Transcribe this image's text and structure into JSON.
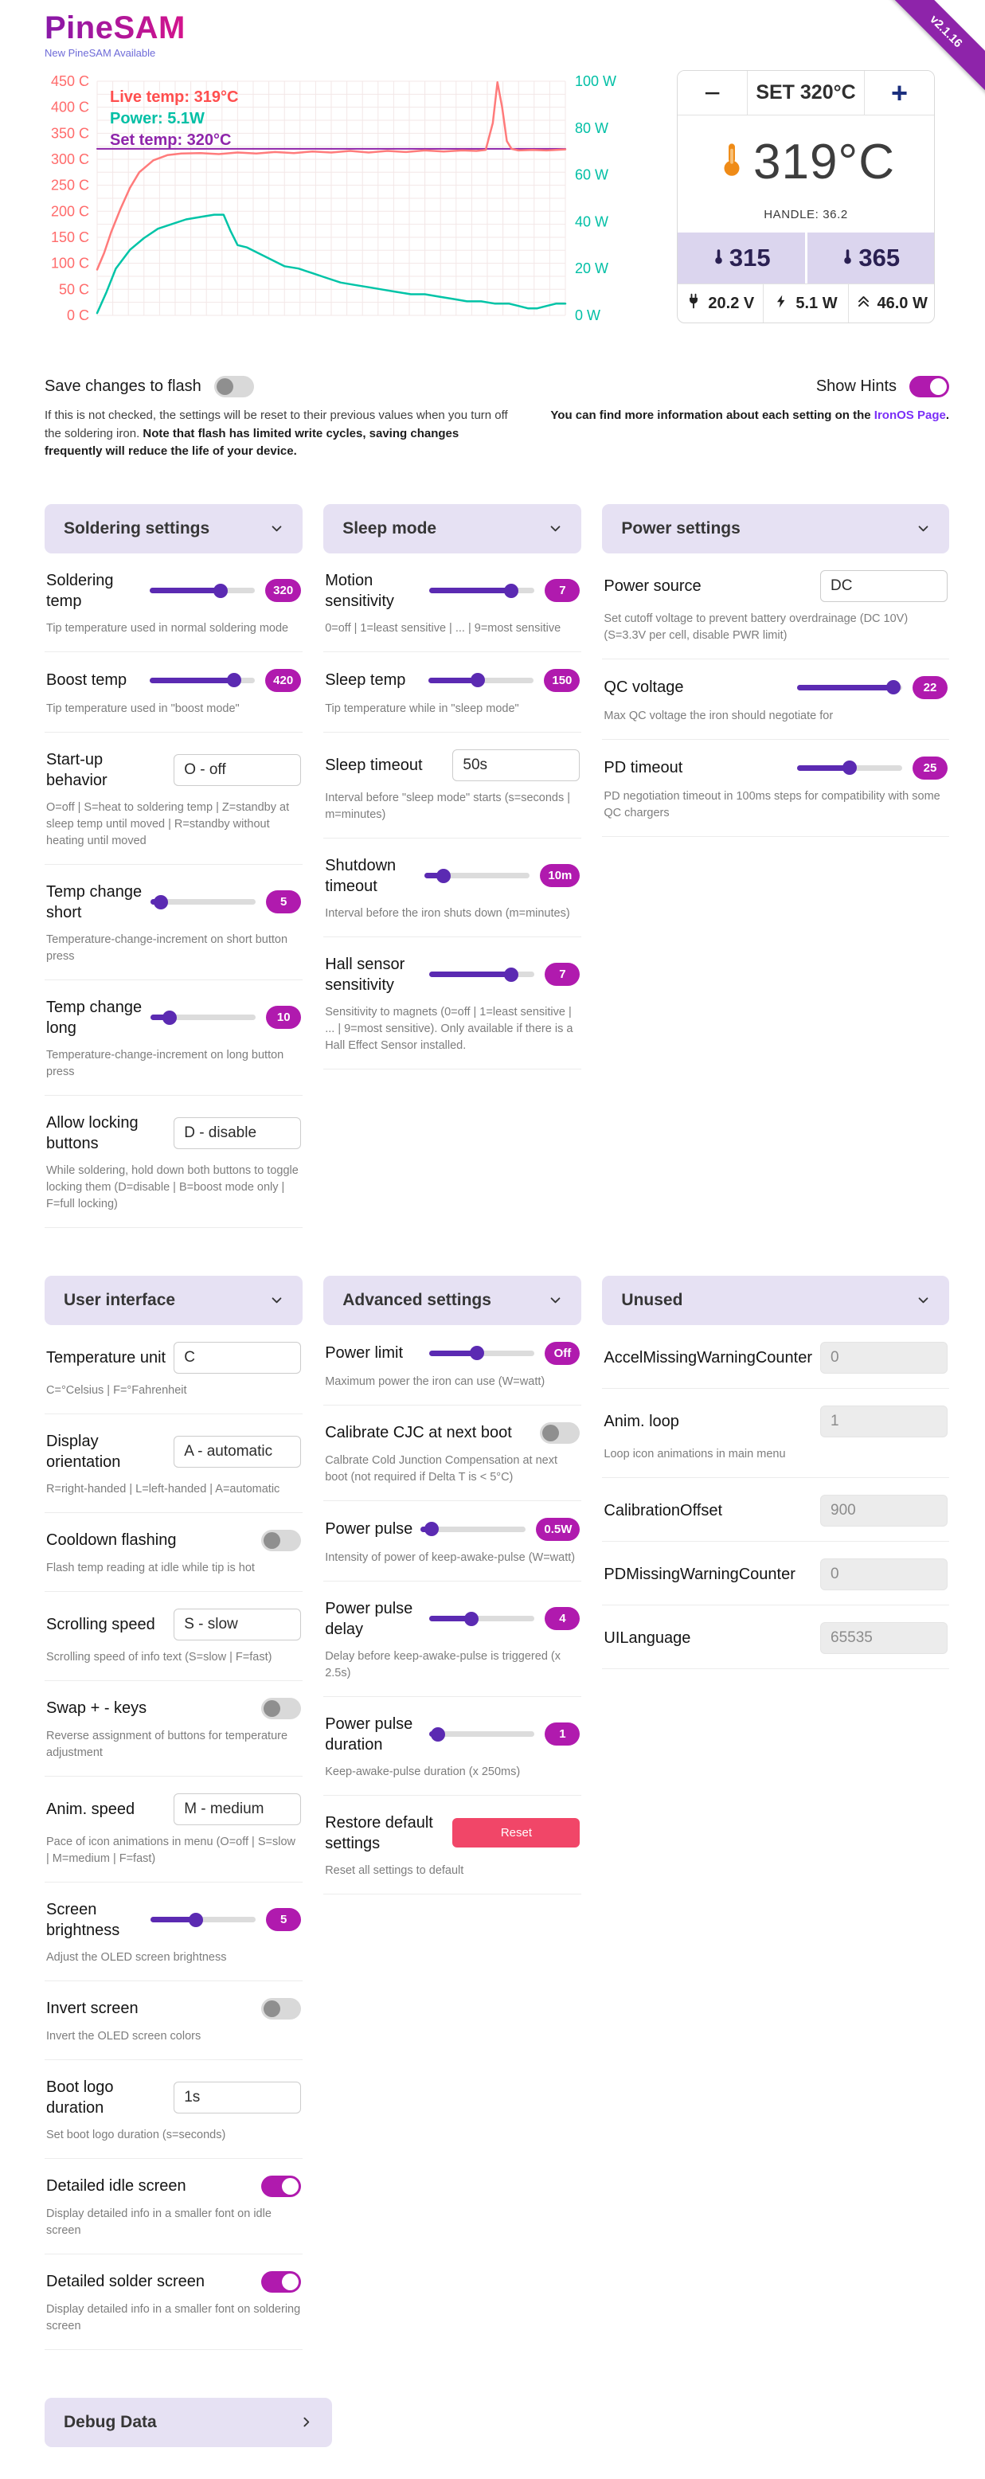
{
  "app": {
    "logo": "PineSAM",
    "update_link": "New PineSAM Available",
    "version": "v2.1.16"
  },
  "chart_data": {
    "type": "line",
    "title": "",
    "grid": true,
    "y_left": {
      "min": 0,
      "max": 450,
      "ticks": [
        0,
        50,
        100,
        150,
        200,
        250,
        300,
        350,
        400,
        450
      ],
      "suffix": " C",
      "color": "#ff6b6b"
    },
    "y_right": {
      "min": 0,
      "max": 100,
      "ticks": [
        0,
        20,
        40,
        60,
        80,
        100
      ],
      "suffix": " W",
      "color": "#00bfa5"
    },
    "legend": [
      {
        "label": "Live temp: 319°C",
        "color": "#ff4f4f"
      },
      {
        "label": "Power: 5.1W",
        "color": "#00bfa5"
      },
      {
        "label": "Set temp: 320°C",
        "color": "#8e24aa"
      }
    ],
    "series": [
      {
        "name": "Set temp",
        "axis": "left",
        "color": "#8e24aa",
        "width": 2,
        "points": [
          [
            0,
            320
          ],
          [
            1,
            320
          ]
        ]
      },
      {
        "name": "Live temp",
        "axis": "left",
        "color": "#ff7b7b",
        "width": 2.5,
        "points": [
          [
            0,
            88
          ],
          [
            0.015,
            120
          ],
          [
            0.03,
            160
          ],
          [
            0.05,
            205
          ],
          [
            0.07,
            245
          ],
          [
            0.09,
            275
          ],
          [
            0.12,
            298
          ],
          [
            0.15,
            308
          ],
          [
            0.18,
            311
          ],
          [
            0.22,
            312
          ],
          [
            0.26,
            310
          ],
          [
            0.3,
            313
          ],
          [
            0.34,
            311
          ],
          [
            0.38,
            314
          ],
          [
            0.42,
            312
          ],
          [
            0.46,
            315
          ],
          [
            0.5,
            313
          ],
          [
            0.54,
            316
          ],
          [
            0.58,
            313
          ],
          [
            0.62,
            316
          ],
          [
            0.66,
            314
          ],
          [
            0.7,
            317
          ],
          [
            0.74,
            315
          ],
          [
            0.78,
            317
          ],
          [
            0.81,
            316
          ],
          [
            0.83,
            318
          ],
          [
            0.845,
            370
          ],
          [
            0.855,
            448
          ],
          [
            0.865,
            400
          ],
          [
            0.875,
            335
          ],
          [
            0.885,
            320
          ],
          [
            0.9,
            317
          ],
          [
            0.93,
            318
          ],
          [
            0.96,
            317
          ],
          [
            1,
            319
          ]
        ]
      },
      {
        "name": "Power",
        "axis": "right",
        "color": "#00c4a7",
        "width": 2.5,
        "points": [
          [
            0,
            1
          ],
          [
            0.02,
            10
          ],
          [
            0.04,
            20
          ],
          [
            0.07,
            28
          ],
          [
            0.1,
            33
          ],
          [
            0.13,
            37
          ],
          [
            0.16,
            39
          ],
          [
            0.19,
            41
          ],
          [
            0.22,
            42
          ],
          [
            0.25,
            43
          ],
          [
            0.27,
            43
          ],
          [
            0.285,
            36
          ],
          [
            0.3,
            30
          ],
          [
            0.32,
            29
          ],
          [
            0.34,
            27
          ],
          [
            0.36,
            25
          ],
          [
            0.38,
            23
          ],
          [
            0.4,
            21
          ],
          [
            0.43,
            20
          ],
          [
            0.46,
            18
          ],
          [
            0.49,
            16
          ],
          [
            0.52,
            14
          ],
          [
            0.55,
            13
          ],
          [
            0.58,
            12
          ],
          [
            0.61,
            11
          ],
          [
            0.64,
            10
          ],
          [
            0.67,
            9
          ],
          [
            0.7,
            9
          ],
          [
            0.73,
            8
          ],
          [
            0.76,
            7
          ],
          [
            0.79,
            6
          ],
          [
            0.82,
            6
          ],
          [
            0.85,
            5
          ],
          [
            0.88,
            5
          ],
          [
            0.9,
            4
          ],
          [
            0.92,
            3
          ],
          [
            0.94,
            3
          ],
          [
            0.96,
            4
          ],
          [
            0.98,
            5
          ],
          [
            1,
            5
          ]
        ]
      }
    ]
  },
  "controls": {
    "minus_label": "−",
    "plus_label": "+",
    "set_label": "SET 320°C",
    "current_temp": "319°C",
    "handle": "HANDLE: 36.2",
    "presets": [
      "315",
      "365"
    ],
    "stats": [
      {
        "icon": "power-plug",
        "value": "20.2 V"
      },
      {
        "icon": "lightning-bolt",
        "value": "5.1 W"
      },
      {
        "icon": "chevrons-up",
        "value": "46.0 W"
      }
    ]
  },
  "flash": {
    "label": "Save changes to flash",
    "desc_normal": "If this is not checked, the settings will be reset to their previous values when you turn off the soldering iron. ",
    "desc_bold": "Note that flash has limited write cycles, saving changes frequently will reduce the life of your device."
  },
  "hints": {
    "label": "Show Hints",
    "desc": "You can find more information about each setting on the ",
    "link": "IronOS Page",
    "desc_end": "."
  },
  "cards": [
    {
      "title": "Soldering settings",
      "rows": [
        {
          "type": "slider",
          "label": "Soldering temp",
          "value": "320",
          "pct": 67,
          "desc": "Tip temperature used in normal soldering mode"
        },
        {
          "type": "slider",
          "label": "Boost temp",
          "value": "420",
          "pct": 80,
          "desc": "Tip temperature used in \"boost mode\""
        },
        {
          "type": "input",
          "label": "Start-up behavior",
          "value": "O - off",
          "desc": "O=off | S=heat to soldering temp | Z=standby at sleep temp until moved | R=standby without heating until moved"
        },
        {
          "type": "slider",
          "label": "Temp change short",
          "value": "5",
          "pct": 10,
          "desc": "Temperature-change-increment on short button press"
        },
        {
          "type": "slider",
          "label": "Temp change long",
          "value": "10",
          "pct": 18,
          "desc": "Temperature-change-increment on long button press"
        },
        {
          "type": "input",
          "label": "Allow locking buttons",
          "value": "D - disable",
          "desc": "While soldering, hold down both buttons to toggle locking them (D=disable | B=boost mode only | F=full locking)"
        }
      ]
    },
    {
      "title": "Sleep mode",
      "rows": [
        {
          "type": "slider",
          "label": "Motion sensitivity",
          "value": "7",
          "pct": 78,
          "desc": "0=off | 1=least sensitive | ... | 9=most sensitive"
        },
        {
          "type": "slider",
          "label": "Sleep temp",
          "value": "150",
          "pct": 47,
          "desc": "Tip temperature while in \"sleep mode\""
        },
        {
          "type": "input",
          "label": "Sleep timeout",
          "value": "50s",
          "desc": "Interval before \"sleep mode\" starts (s=seconds | m=minutes)"
        },
        {
          "type": "slider",
          "label": "Shutdown timeout",
          "value": "10m",
          "pct": 18,
          "desc": "Interval before the iron shuts down (m=minutes)"
        },
        {
          "type": "slider",
          "label": "Hall sensor sensitivity",
          "value": "7",
          "pct": 78,
          "desc": "Sensitivity to magnets (0=off | 1=least sensitive | ... | 9=most sensitive). Only available if there is a Hall Effect Sensor installed."
        }
      ]
    },
    {
      "title": "Power settings",
      "rows": [
        {
          "type": "input",
          "label": "Power source",
          "value": "DC",
          "desc": "Set cutoff voltage to prevent battery overdrainage (DC 10V) (S=3.3V per cell, disable PWR limit)"
        },
        {
          "type": "slider",
          "label": "QC voltage",
          "value": "22",
          "pct": 92,
          "desc": "Max QC voltage the iron should negotiate for"
        },
        {
          "type": "slider",
          "label": "PD timeout",
          "value": "25",
          "pct": 50,
          "desc": "PD negotiation timeout in 100ms steps for compatibility with some QC chargers"
        }
      ]
    },
    {
      "title": "User interface",
      "rows": [
        {
          "type": "input",
          "label": "Temperature unit",
          "value": "C",
          "desc": "C=°Celsius | F=°Fahrenheit"
        },
        {
          "type": "input",
          "label": "Display orientation",
          "value": "A - automatic",
          "desc": "R=right-handed | L=left-handed | A=automatic"
        },
        {
          "type": "toggle",
          "label": "Cooldown flashing",
          "on": false,
          "desc": "Flash temp reading at idle while tip is hot"
        },
        {
          "type": "input",
          "label": "Scrolling speed",
          "value": "S - slow",
          "desc": "Scrolling speed of info text (S=slow | F=fast)"
        },
        {
          "type": "toggle",
          "label": "Swap + - keys",
          "on": false,
          "desc": "Reverse assignment of buttons for temperature adjustment"
        },
        {
          "type": "input",
          "label": "Anim. speed",
          "value": "M - medium",
          "desc": "Pace of icon animations in menu (O=off | S=slow | M=medium | F=fast)"
        },
        {
          "type": "slider",
          "label": "Screen brightness",
          "value": "5",
          "pct": 43,
          "desc": "Adjust the OLED screen brightness"
        },
        {
          "type": "toggle",
          "label": "Invert screen",
          "on": false,
          "desc": "Invert the OLED screen colors"
        },
        {
          "type": "input",
          "label": "Boot logo duration",
          "value": "1s",
          "desc": "Set boot logo duration (s=seconds)"
        },
        {
          "type": "toggle",
          "label": "Detailed idle screen",
          "on": true,
          "desc": "Display detailed info in a smaller font on idle screen"
        },
        {
          "type": "toggle",
          "label": "Detailed solder screen",
          "on": true,
          "desc": "Display detailed info in a smaller font on soldering screen"
        }
      ]
    },
    {
      "title": "Advanced settings",
      "rows": [
        {
          "type": "slider",
          "label": "Power limit",
          "value": "Off",
          "pct": 45,
          "desc": "Maximum power the iron can use (W=watt)"
        },
        {
          "type": "toggle",
          "label": "Calibrate CJC at next boot",
          "on": false,
          "desc": "Calbrate Cold Junction Compensation at next boot (not required if Delta T is < 5°C)"
        },
        {
          "type": "slider",
          "label": "Power pulse",
          "value": "0.5W",
          "pct": 10,
          "desc": "Intensity of power of keep-awake-pulse (W=watt)"
        },
        {
          "type": "slider",
          "label": "Power pulse delay",
          "value": "4",
          "pct": 40,
          "desc": "Delay before keep-awake-pulse is triggered (x 2.5s)"
        },
        {
          "type": "slider",
          "label": "Power pulse duration",
          "value": "1",
          "pct": 8,
          "desc": "Keep-awake-pulse duration (x 250ms)"
        },
        {
          "type": "button",
          "label": "Restore default settings",
          "button": "Reset",
          "desc": "Reset all settings to default"
        }
      ]
    },
    {
      "title": "Unused",
      "rows": [
        {
          "type": "input",
          "label": "AccelMissingWarningCounter",
          "value": "0",
          "muted": true,
          "clip": true
        },
        {
          "type": "input",
          "label": "Anim. loop",
          "value": "1",
          "muted": true,
          "desc": "Loop icon animations in main menu"
        },
        {
          "type": "input",
          "label": "CalibrationOffset",
          "value": "900",
          "muted": true
        },
        {
          "type": "input",
          "label": "PDMissingWarningCounter",
          "value": "0",
          "muted": true,
          "clip": true
        },
        {
          "type": "input",
          "label": "UILanguage",
          "value": "65535",
          "muted": true
        }
      ]
    }
  ],
  "debug": {
    "label": "Debug Data"
  }
}
